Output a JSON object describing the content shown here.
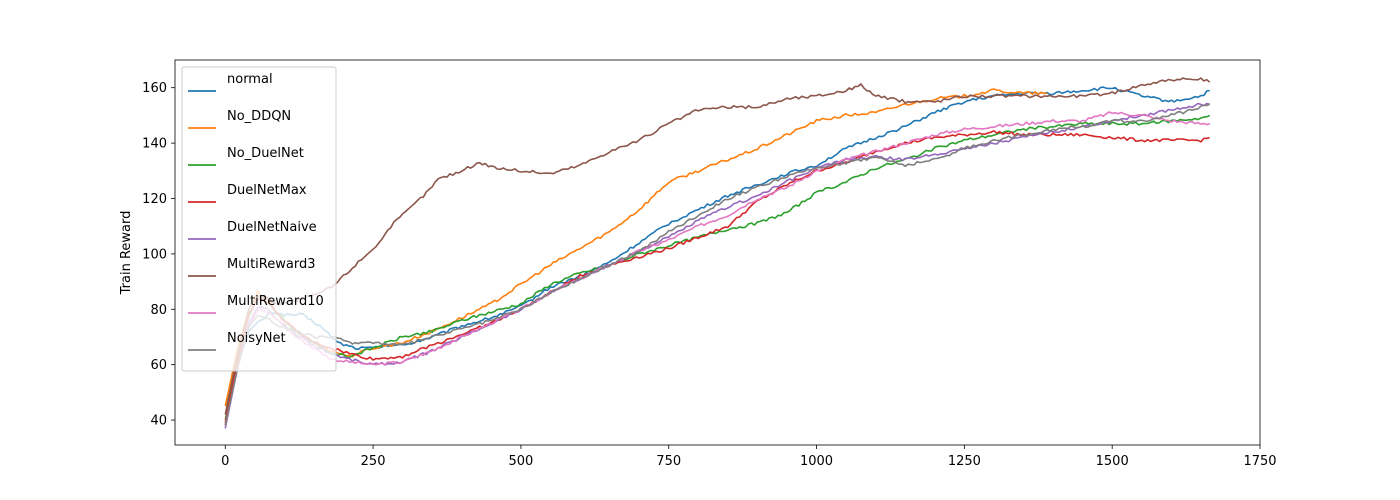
{
  "chart_data": {
    "type": "line",
    "title": "",
    "xlabel": "",
    "ylabel": "Train Reward",
    "xlim": [
      -85,
      1750
    ],
    "ylim": [
      31,
      170
    ],
    "xticks": [
      0,
      250,
      500,
      750,
      1000,
      1250,
      1500,
      1750
    ],
    "yticks": [
      40,
      60,
      80,
      100,
      120,
      140,
      160
    ],
    "grid": false,
    "legend_position": "upper-left",
    "series": [
      {
        "name": "normal",
        "color": "#1f77b4",
        "x": [
          0,
          20,
          40,
          60,
          80,
          100,
          130,
          160,
          190,
          220,
          250,
          280,
          300,
          350,
          400,
          450,
          500,
          550,
          600,
          650,
          700,
          750,
          800,
          850,
          900,
          950,
          1000,
          1050,
          1100,
          1150,
          1200,
          1250,
          1300,
          1350,
          1400,
          1450,
          1500,
          1550,
          1600,
          1650,
          1665
        ],
        "y": [
          38,
          60,
          72,
          76,
          79,
          78,
          78,
          74,
          68,
          66,
          66,
          67,
          67,
          70,
          74,
          77,
          81,
          88,
          92,
          97,
          104,
          111,
          116,
          121,
          125,
          129,
          132,
          138,
          142,
          146,
          151,
          155,
          157,
          158,
          158,
          159,
          160,
          157,
          155,
          157,
          159
        ]
      },
      {
        "name": "No_DDQN",
        "color": "#ff7f0e",
        "x": [
          0,
          20,
          40,
          55,
          70,
          90,
          120,
          150,
          180,
          210,
          250,
          300,
          350,
          400,
          450,
          500,
          550,
          600,
          650,
          700,
          750,
          800,
          850,
          900,
          950,
          1000,
          1050,
          1100,
          1150,
          1200,
          1250,
          1300,
          1350,
          1390
        ],
        "y": [
          45,
          65,
          80,
          86,
          84,
          78,
          72,
          68,
          65,
          63,
          66,
          68,
          72,
          77,
          82,
          89,
          96,
          102,
          108,
          116,
          126,
          130,
          134,
          138,
          143,
          148,
          150,
          151,
          154,
          156,
          157,
          159,
          158,
          158
        ]
      },
      {
        "name": "No_DuelNet",
        "color": "#2ca02c",
        "x": [
          0,
          20,
          40,
          55,
          70,
          90,
          120,
          150,
          180,
          210,
          250,
          300,
          350,
          400,
          450,
          500,
          550,
          600,
          650,
          700,
          750,
          800,
          850,
          900,
          950,
          1000,
          1050,
          1100,
          1150,
          1200,
          1250,
          1300,
          1350,
          1400,
          1450,
          1500,
          1550,
          1600,
          1650,
          1665
        ],
        "y": [
          40,
          62,
          78,
          84,
          83,
          78,
          72,
          68,
          64,
          63,
          66,
          70,
          72,
          76,
          79,
          82,
          89,
          93,
          96,
          100,
          103,
          106,
          109,
          111,
          115,
          122,
          126,
          131,
          134,
          138,
          141,
          143,
          145,
          146,
          147,
          147,
          147,
          148,
          149,
          150
        ]
      },
      {
        "name": "DuelNetMax",
        "color": "#d62728",
        "x": [
          0,
          20,
          40,
          55,
          70,
          90,
          120,
          150,
          180,
          210,
          250,
          300,
          350,
          400,
          450,
          500,
          550,
          600,
          650,
          700,
          750,
          800,
          850,
          900,
          950,
          1000,
          1050,
          1100,
          1150,
          1200,
          1250,
          1300,
          1350,
          1400,
          1450,
          1500,
          1550,
          1600,
          1650,
          1665
        ],
        "y": [
          39,
          60,
          78,
          84,
          83,
          78,
          72,
          68,
          66,
          64,
          62,
          63,
          67,
          71,
          75,
          80,
          86,
          92,
          96,
          99,
          102,
          106,
          110,
          119,
          125,
          130,
          133,
          137,
          140,
          142,
          143,
          144,
          143,
          143,
          143,
          142,
          141,
          141,
          141,
          142
        ]
      },
      {
        "name": "DuelNetNaive",
        "color": "#9467bd",
        "x": [
          0,
          20,
          40,
          55,
          70,
          90,
          120,
          150,
          180,
          210,
          250,
          300,
          350,
          400,
          450,
          500,
          550,
          600,
          650,
          700,
          750,
          800,
          850,
          900,
          950,
          1000,
          1050,
          1100,
          1150,
          1200,
          1250,
          1300,
          1350,
          1400,
          1450,
          1500,
          1550,
          1600,
          1650,
          1665
        ],
        "y": [
          37,
          58,
          75,
          81,
          80,
          76,
          71,
          67,
          64,
          62,
          60,
          61,
          65,
          70,
          75,
          80,
          86,
          91,
          96,
          101,
          106,
          112,
          117,
          121,
          126,
          131,
          134,
          135,
          134,
          136,
          138,
          140,
          142,
          144,
          146,
          148,
          150,
          152,
          154,
          154
        ]
      },
      {
        "name": "MultiReward3",
        "color": "#8c564b",
        "x": [
          0,
          20,
          40,
          55,
          70,
          90,
          120,
          150,
          180,
          200,
          230,
          260,
          280,
          310,
          340,
          360,
          400,
          430,
          460,
          500,
          550,
          600,
          650,
          700,
          750,
          800,
          850,
          900,
          950,
          1000,
          1050,
          1075,
          1100,
          1150,
          1200,
          1250,
          1300,
          1350,
          1400,
          1450,
          1500,
          1550,
          1600,
          1650,
          1665
        ],
        "y": [
          42,
          63,
          80,
          85,
          84,
          82,
          83,
          85,
          88,
          92,
          98,
          104,
          110,
          116,
          122,
          127,
          130,
          133,
          131,
          130,
          129,
          132,
          137,
          141,
          147,
          152,
          153,
          153,
          156,
          157,
          159,
          161,
          157,
          155,
          155,
          157,
          157,
          157,
          157,
          157,
          158,
          161,
          163,
          163,
          162
        ]
      },
      {
        "name": "MultiReward10",
        "color": "#e377c2",
        "x": [
          0,
          20,
          40,
          55,
          70,
          90,
          120,
          150,
          180,
          210,
          250,
          300,
          350,
          400,
          450,
          500,
          550,
          600,
          650,
          700,
          750,
          800,
          850,
          900,
          950,
          1000,
          1050,
          1100,
          1150,
          1200,
          1250,
          1300,
          1350,
          1400,
          1450,
          1500,
          1550,
          1600,
          1650,
          1665
        ],
        "y": [
          38,
          58,
          74,
          80,
          79,
          76,
          70,
          66,
          62,
          61,
          60,
          61,
          65,
          70,
          75,
          80,
          86,
          91,
          96,
          101,
          105,
          110,
          114,
          120,
          124,
          130,
          134,
          137,
          140,
          143,
          145,
          146,
          147,
          148,
          148,
          151,
          150,
          148,
          147,
          147
        ]
      },
      {
        "name": "NoisyNet",
        "color": "#7f7f7f",
        "x": [
          0,
          20,
          40,
          55,
          70,
          90,
          120,
          150,
          180,
          210,
          250,
          300,
          350,
          400,
          450,
          500,
          550,
          600,
          650,
          700,
          750,
          800,
          850,
          900,
          950,
          1000,
          1050,
          1100,
          1150,
          1200,
          1250,
          1300,
          1350,
          1400,
          1450,
          1500,
          1550,
          1600,
          1650,
          1665
        ],
        "y": [
          38,
          58,
          74,
          78,
          77,
          74,
          72,
          70,
          70,
          68,
          68,
          67,
          70,
          73,
          76,
          80,
          86,
          91,
          96,
          101,
          108,
          114,
          120,
          124,
          128,
          131,
          133,
          135,
          132,
          134,
          138,
          141,
          143,
          145,
          146,
          148,
          148,
          150,
          153,
          154
        ]
      }
    ]
  }
}
